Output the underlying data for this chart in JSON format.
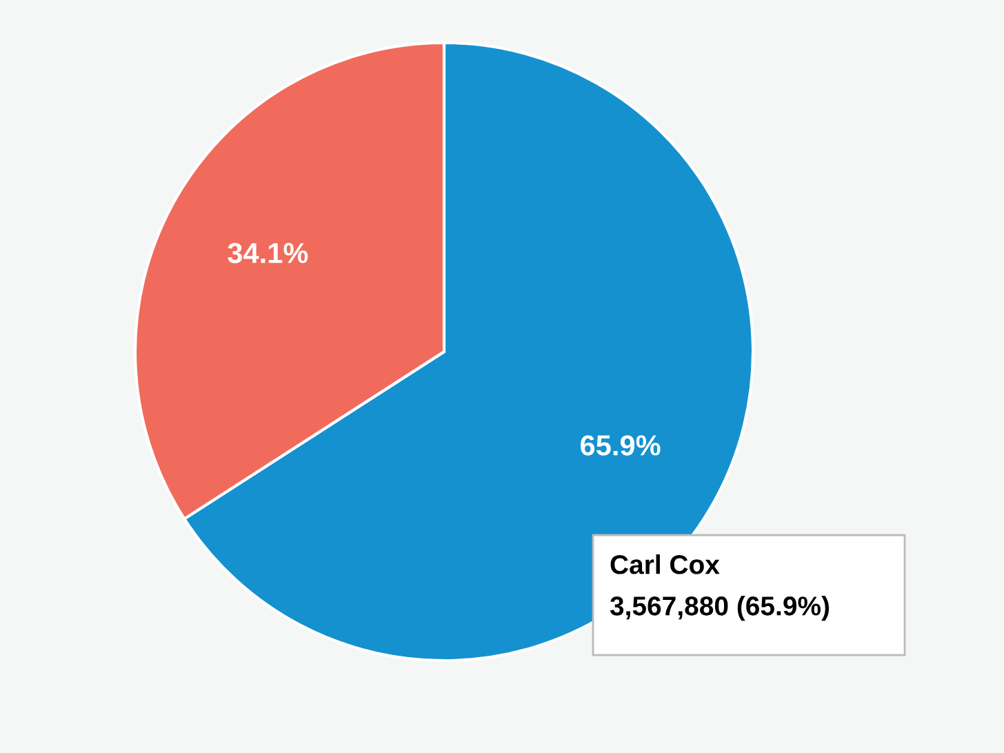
{
  "chart_data": {
    "type": "pie",
    "categories": [
      "Carl Cox",
      null
    ],
    "values": [
      65.9,
      34.1
    ],
    "colors": [
      "#1591d0",
      "#f06b5c"
    ],
    "value_labels": [
      "65.9%",
      "34.1%"
    ],
    "annotations": [
      "3,567,880 (65.9%)"
    ]
  }
}
